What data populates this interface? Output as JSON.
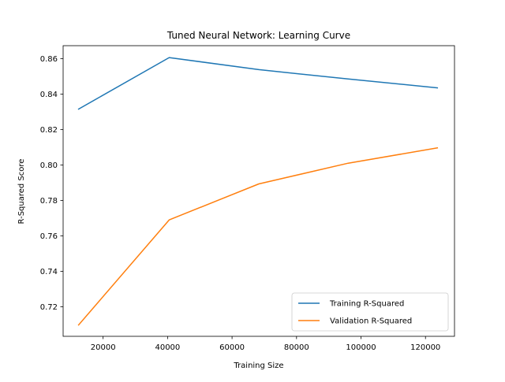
{
  "chart_data": {
    "type": "line",
    "title": "Tuned Neural Network: Learning Curve",
    "xlabel": "Training Size",
    "ylabel": "R-Squared Score",
    "xlim": [
      7600,
      129000
    ],
    "ylim": [
      0.7033,
      0.8673
    ],
    "xticks": [
      20000,
      40000,
      60000,
      80000,
      100000,
      120000
    ],
    "xtick_labels": [
      "20000",
      "40000",
      "60000",
      "80000",
      "100000",
      "120000"
    ],
    "yticks": [
      0.72,
      0.74,
      0.76,
      0.78,
      0.8,
      0.82,
      0.84,
      0.86
    ],
    "ytick_labels": [
      "0.72",
      "0.74",
      "0.76",
      "0.78",
      "0.80",
      "0.82",
      "0.84",
      "0.86"
    ],
    "grid": false,
    "legend_position": "lower-right",
    "x": [
      12400,
      40500,
      68300,
      96000,
      123700
    ],
    "series": [
      {
        "name": "Training R-Squared",
        "color": "#1f77b4",
        "values": [
          0.8315,
          0.8606,
          0.8538,
          0.8485,
          0.8435
        ]
      },
      {
        "name": "Validation R-Squared",
        "color": "#ff7f0e",
        "values": [
          0.7097,
          0.769,
          0.7893,
          0.801,
          0.8096
        ]
      }
    ]
  }
}
